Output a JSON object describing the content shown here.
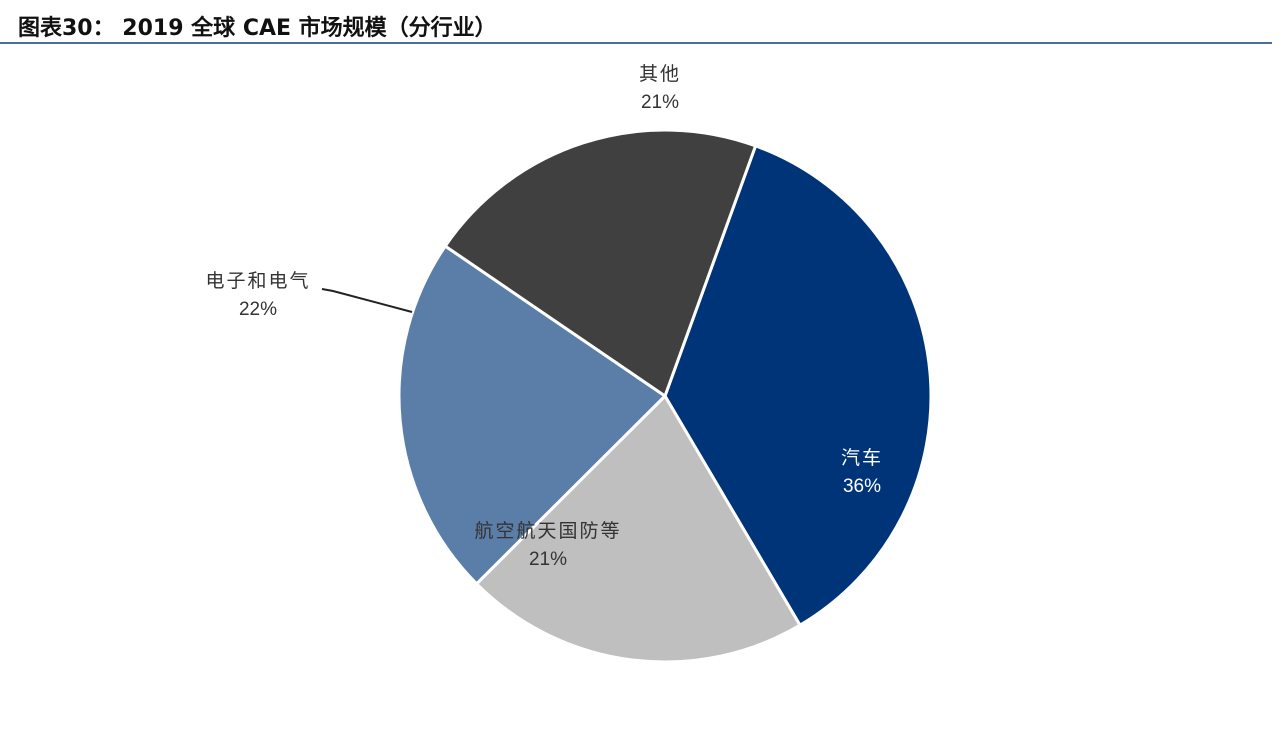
{
  "title": "图表30：  2019 全球 CAE 市场规模（分行业）",
  "chart_data": {
    "type": "pie",
    "title": "图表30：  2019 全球 CAE 市场规模（分行业）",
    "start_angle_deg": 19.9,
    "direction": "clockwise",
    "slices": [
      {
        "name": "汽车",
        "value": 36,
        "label": "36%",
        "color": "#003478",
        "text_color": "#ffffff"
      },
      {
        "name": "航空航天国防等",
        "value": 21,
        "label": "21%",
        "color": "#bfbfbf",
        "text_color": "#333333"
      },
      {
        "name": "电子和电气",
        "value": 22,
        "label": "22%",
        "color": "#5b7ea9",
        "text_color": "#333333"
      },
      {
        "name": "其他",
        "value": 21,
        "label": "21%",
        "color": "#404040",
        "text_color": "#333333"
      }
    ]
  }
}
